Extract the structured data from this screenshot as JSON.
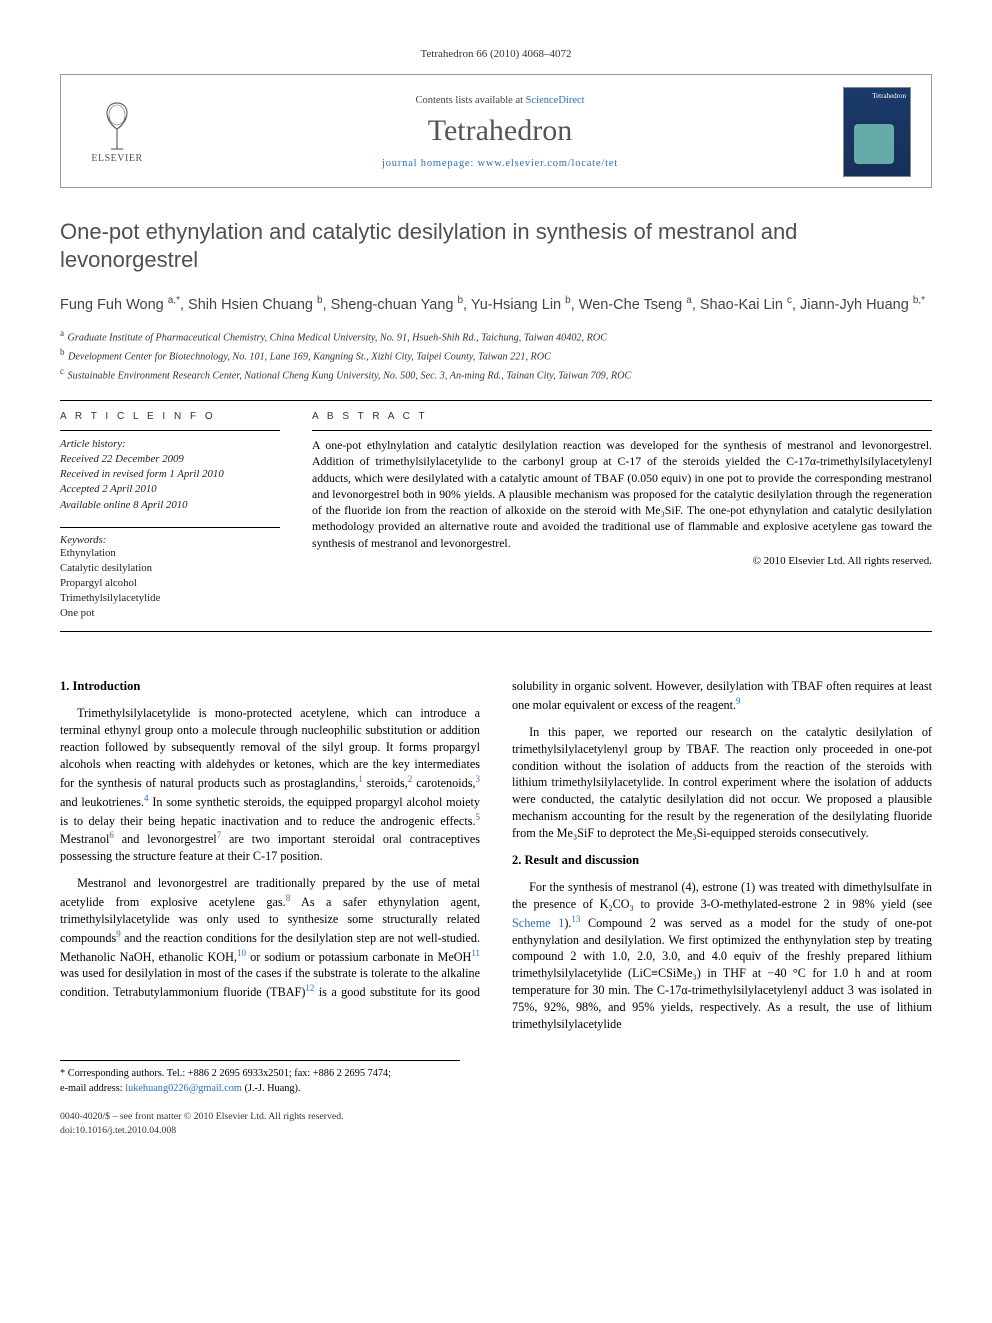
{
  "running_head": "Tetrahedron 66 (2010) 4068–4072",
  "masthead": {
    "contents_prefix": "Contents lists available at ",
    "contents_link": "ScienceDirect",
    "journal": "Tetrahedron",
    "homepage_prefix": "journal homepage: ",
    "homepage": "www.elsevier.com/locate/tet",
    "publisher_name": "ELSEVIER",
    "cover_label": "Tetrahedron"
  },
  "title": "One-pot ethynylation and catalytic desilylation in synthesis of mestranol and levonorgestrel",
  "authors_html": "Fung Fuh Wong <sup>a,*</sup>, Shih Hsien Chuang <sup>b</sup>, Sheng-chuan Yang <sup>b</sup>, Yu-Hsiang Lin <sup>b</sup>, Wen-Che Tseng <sup>a</sup>, Shao-Kai Lin <sup>c</sup>, Jiann-Jyh Huang <sup>b,*</sup>",
  "affiliations": [
    {
      "key": "a",
      "text": "Graduate Institute of Pharmaceutical Chemistry, China Medical University, No. 91, Hsueh-Shih Rd., Taichung, Taiwan 40402, ROC"
    },
    {
      "key": "b",
      "text": "Development Center for Biotechnology, No. 101, Lane 169, Kangning St., Xizhi City, Taipei County, Taiwan 221, ROC"
    },
    {
      "key": "c",
      "text": "Sustainable Environment Research Center, National Cheng Kung University, No. 500, Sec. 3, An-ming Rd., Tainan City, Taiwan 709, ROC"
    }
  ],
  "article_info": {
    "heading": "A R T I C L E   I N F O",
    "history_label": "Article history:",
    "history": [
      "Received 22 December 2009",
      "Received in revised form 1 April 2010",
      "Accepted 2 April 2010",
      "Available online 8 April 2010"
    ],
    "keywords_label": "Keywords:",
    "keywords": [
      "Ethynylation",
      "Catalytic desilylation",
      "Propargyl alcohol",
      "Trimethylsilylacetylide",
      "One pot"
    ]
  },
  "abstract": {
    "heading": "A B S T R A C T",
    "text": "A one-pot ethylnylation and catalytic desilylation reaction was developed for the synthesis of mestranol and levonorgestrel. Addition of trimethylsilylacetylide to the carbonyl group at C-17 of the steroids yielded the C-17α-trimethylsilylacetylenyl adducts, which were desilylated with a catalytic amount of TBAF (0.050 equiv) in one pot to provide the corresponding mestranol and levonorgestrel both in 90% yields. A plausible mechanism was proposed for the catalytic desilylation through the regeneration of the fluoride ion from the reaction of alkoxide on the steroid with Me₃SiF. The one-pot ethynylation and catalytic desilylation methodology provided an alternative route and avoided the traditional use of flammable and explosive acetylene gas toward the synthesis of mestranol and levonorgestrel.",
    "copyright": "© 2010 Elsevier Ltd. All rights reserved."
  },
  "sections": {
    "intro_heading": "1. Introduction",
    "intro_p1_a": "Trimethylsilylacetylide is mono-protected acetylene, which can introduce a terminal ethynyl group onto a molecule through nucleophilic substitution or addition reaction followed by subsequently removal of the silyl group. It forms propargyl alcohols when reacting with aldehydes or ketones, which are the key intermediates for the synthesis of natural products such as prostaglandins,",
    "intro_p1_b": " steroids,",
    "intro_p1_c": " carotenoids,",
    "intro_p1_d": " and leukotrienes.",
    "intro_p1_e": " In some synthetic steroids, the equipped propargyl alcohol moiety is to delay their being hepatic inactivation and to reduce the androgenic effects.",
    "intro_p1_f": " Mestranol",
    "intro_p1_g": " and levonorgestrel",
    "intro_p1_h": " are two important steroidal oral contraceptives possessing the structure feature at their C-17 position.",
    "intro_p2_a": "Mestranol and levonorgestrel are traditionally prepared by the use of metal acetylide from explosive acetylene gas.",
    "intro_p2_b": " As a safer ethynylation agent, trimethylsilylacetylide was only used to synthesize some structurally related compounds",
    "intro_p2_c": " and the reaction conditions for the desilylation step are not well-studied. Methanolic NaOH, ethanolic KOH,",
    "intro_p2_d": " or sodium or potassium carbonate in MeOH",
    "intro_p2_e": " was used for desilylation in most of the cases if the substrate is tolerate to the alkaline condition. Tetrabutylammonium",
    "intro_p2_f": "fluoride (TBAF)",
    "intro_p2_g": " is a good substitute for its good solubility in organic solvent. However, desilylation with TBAF often requires at least one molar equivalent or excess of the reagent.",
    "intro_p3": "In this paper, we reported our research on the catalytic desilylation of trimethylsilylacetylenyl group by TBAF. The reaction only proceeded in one-pot condition without the isolation of adducts from the reaction of the steroids with lithium trimethylsilylacetylide. In control experiment where the isolation of adducts were conducted, the catalytic desilylation did not occur. We proposed a plausible mechanism accounting for the result by the regeneration of the desilylating fluoride from the Me₃SiF to deprotect the Me₃Si-equipped steroids consecutively.",
    "results_heading": "2. Result and discussion",
    "results_p1_a": "For the synthesis of mestranol (4), estrone (1) was treated with dimethylsulfate in the presence of K₂CO₃ to provide 3-O-methylated-estrone 2 in 98% yield (see ",
    "results_scheme_link": "Scheme 1",
    "results_p1_b": ").",
    "results_p1_c": " Compound 2 was served as a model for the study of one-pot enthynylation and desilylation. We first optimized the enthynylation step by treating compound 2 with 1.0, 2.0, 3.0, and 4.0 equiv of the freshly prepared lithium trimethylsilylacetylide (LiC≡CSiMe₃) in THF at −40 °C for 1.0 h and at room temperature for 30 min. The C-17α-trimethylsilylacetylenyl adduct 3 was isolated in 75%, 92%, 98%, and 95% yields, respectively. As a result, the use of lithium trimethylsilylacetylide",
    "refs": {
      "r1": "1",
      "r2": "2",
      "r3": "3",
      "r4": "4",
      "r5": "5",
      "r6": "6",
      "r7": "7",
      "r8": "8",
      "r9": "9",
      "r10": "10",
      "r11": "11",
      "r12": "12",
      "r13": "13"
    }
  },
  "corresponding": {
    "line1": "* Corresponding authors. Tel.: +886 2 2695 6933x2501; fax: +886 2 2695 7474;",
    "line2_prefix": "e-mail address: ",
    "email": "lukehuang0226@gmail.com",
    "line2_suffix": " (J.-J. Huang)."
  },
  "footer": {
    "line1": "0040-4020/$ – see front matter © 2010 Elsevier Ltd. All rights reserved.",
    "line2": "doi:10.1016/j.tet.2010.04.008"
  },
  "colors": {
    "link": "#2a6db8",
    "text": "#000000",
    "muted": "#505050",
    "rule": "#000000"
  }
}
